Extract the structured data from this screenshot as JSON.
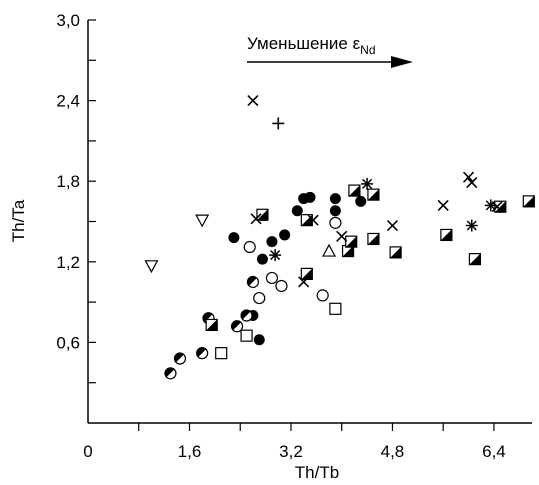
{
  "chart_data": {
    "type": "scatter",
    "xlabel": "Th/Tb",
    "ylabel": "Th/Ta",
    "xlim": [
      0,
      7.0
    ],
    "ylim": [
      0,
      3.0
    ],
    "x_ticks": [
      "0",
      "1,6",
      "3,2",
      "4,8",
      "6,4"
    ],
    "y_ticks": [
      "0,6",
      "1,2",
      "1,8",
      "2,4",
      "3,0"
    ],
    "annotation": {
      "text": "Уменьшение ε",
      "subscript": "Nd",
      "arrow": "right"
    },
    "series": [
      {
        "marker": "filled-circle",
        "points": [
          [
            2.3,
            1.38
          ],
          [
            2.9,
            1.35
          ],
          [
            3.1,
            1.4
          ],
          [
            3.3,
            1.58
          ],
          [
            3.4,
            1.67
          ],
          [
            3.5,
            1.68
          ],
          [
            3.9,
            1.67
          ],
          [
            3.9,
            1.58
          ],
          [
            4.3,
            1.65
          ],
          [
            2.7,
            0.62
          ],
          [
            2.6,
            0.8
          ],
          [
            2.75,
            1.22
          ]
        ]
      },
      {
        "marker": "half-filled-circle",
        "points": [
          [
            1.3,
            0.37
          ],
          [
            1.45,
            0.48
          ],
          [
            1.8,
            0.52
          ],
          [
            1.9,
            0.78
          ],
          [
            2.35,
            0.72
          ],
          [
            2.5,
            0.8
          ],
          [
            2.6,
            1.05
          ]
        ]
      },
      {
        "marker": "open-circle",
        "points": [
          [
            2.55,
            1.31
          ],
          [
            2.9,
            1.08
          ],
          [
            3.05,
            1.02
          ],
          [
            3.7,
            0.95
          ],
          [
            3.9,
            1.49
          ],
          [
            2.7,
            0.93
          ]
        ]
      },
      {
        "marker": "open-square",
        "points": [
          [
            2.1,
            0.52
          ],
          [
            2.5,
            0.65
          ],
          [
            3.9,
            0.85
          ]
        ]
      },
      {
        "marker": "half-filled-square",
        "points": [
          [
            1.95,
            0.73
          ],
          [
            2.75,
            1.55
          ],
          [
            3.45,
            1.51
          ],
          [
            3.45,
            1.11
          ],
          [
            4.1,
            1.28
          ],
          [
            4.15,
            1.35
          ],
          [
            4.2,
            1.73
          ],
          [
            4.5,
            1.7
          ],
          [
            4.5,
            1.37
          ],
          [
            4.85,
            1.27
          ],
          [
            5.65,
            1.4
          ],
          [
            6.1,
            1.22
          ],
          [
            6.5,
            1.61
          ],
          [
            6.95,
            1.65
          ]
        ]
      },
      {
        "marker": "open-triangle-down",
        "points": [
          [
            1.0,
            1.17
          ],
          [
            1.8,
            1.51
          ]
        ]
      },
      {
        "marker": "open-triangle-up",
        "points": [
          [
            3.8,
            1.28
          ]
        ]
      },
      {
        "marker": "x-cross",
        "points": [
          [
            2.6,
            2.4
          ],
          [
            2.65,
            1.52
          ],
          [
            3.4,
            1.05
          ],
          [
            3.55,
            1.51
          ],
          [
            4.0,
            1.39
          ],
          [
            4.8,
            1.47
          ],
          [
            5.6,
            1.62
          ],
          [
            6.0,
            1.83
          ],
          [
            6.05,
            1.79
          ],
          [
            6.45,
            1.61
          ]
        ]
      },
      {
        "marker": "plus",
        "points": [
          [
            3.0,
            2.23
          ]
        ]
      },
      {
        "marker": "asterisk",
        "points": [
          [
            2.95,
            1.25
          ],
          [
            4.4,
            1.78
          ],
          [
            6.05,
            1.47
          ],
          [
            6.35,
            1.62
          ]
        ]
      }
    ]
  }
}
